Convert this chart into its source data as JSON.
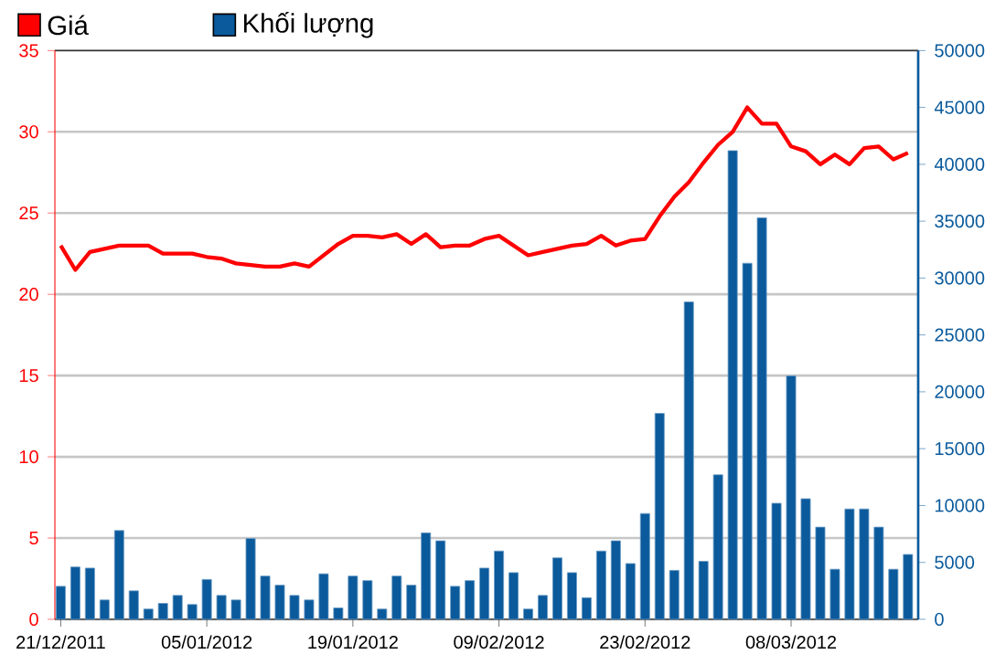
{
  "chart_data": {
    "type": "bar",
    "categories": [
      "21/12/2011",
      null,
      null,
      null,
      null,
      null,
      null,
      null,
      null,
      null,
      "05/01/2012",
      null,
      null,
      null,
      null,
      null,
      null,
      null,
      null,
      null,
      "19/01/2012",
      null,
      null,
      null,
      null,
      null,
      null,
      null,
      null,
      null,
      "09/02/2012",
      null,
      null,
      null,
      null,
      null,
      null,
      null,
      null,
      null,
      "23/02/2012",
      null,
      null,
      null,
      null,
      null,
      null,
      null,
      null,
      null,
      "08/03/2012",
      null,
      null,
      null,
      null,
      null,
      null,
      null,
      null
    ],
    "series": [
      {
        "name": "Giá",
        "type": "line",
        "color": "#ff0000",
        "values": [
          23.0,
          21.5,
          22.6,
          22.8,
          23.0,
          23.0,
          23.0,
          22.5,
          22.5,
          22.5,
          22.3,
          22.2,
          21.9,
          21.8,
          21.7,
          21.7,
          21.9,
          21.7,
          22.4,
          23.1,
          23.6,
          23.6,
          23.5,
          23.7,
          23.1,
          23.7,
          22.9,
          23.0,
          23.0,
          23.4,
          23.6,
          23.0,
          22.4,
          22.6,
          22.8,
          23.0,
          23.1,
          23.6,
          23.0,
          23.3,
          23.4,
          24.8,
          26.0,
          26.9,
          28.1,
          29.2,
          30.0,
          31.5,
          30.5,
          30.5,
          29.1,
          28.8,
          28.0,
          28.6,
          28.0,
          29.0,
          29.1,
          28.3,
          28.7
        ]
      },
      {
        "name": "Khối lượng",
        "axis": "y2",
        "color": "#0a5a9c",
        "values": [
          2900,
          4600,
          4500,
          1700,
          7800,
          2500,
          900,
          1400,
          2100,
          1300,
          3500,
          2100,
          1700,
          7100,
          3800,
          3000,
          2100,
          1700,
          4000,
          1000,
          3800,
          3400,
          900,
          3800,
          3000,
          7600,
          6900,
          2900,
          3400,
          4500,
          6000,
          4100,
          900,
          2100,
          5400,
          4100,
          1900,
          6000,
          6900,
          4900,
          9300,
          18100,
          4300,
          27900,
          5100,
          12700,
          41200,
          31300,
          35300,
          10200,
          21400,
          10600,
          8100,
          4400,
          9700,
          9700,
          8100,
          4400,
          5700
        ]
      }
    ],
    "ylim": [
      0,
      35
    ],
    "yticks": [
      0,
      5,
      10,
      15,
      20,
      25,
      30,
      35
    ],
    "y2lim": [
      0,
      50000
    ],
    "y2ticks": [
      0,
      5000,
      10000,
      15000,
      20000,
      25000,
      30000,
      35000,
      40000,
      45000,
      50000
    ],
    "grid": "y",
    "legend": "top left"
  }
}
